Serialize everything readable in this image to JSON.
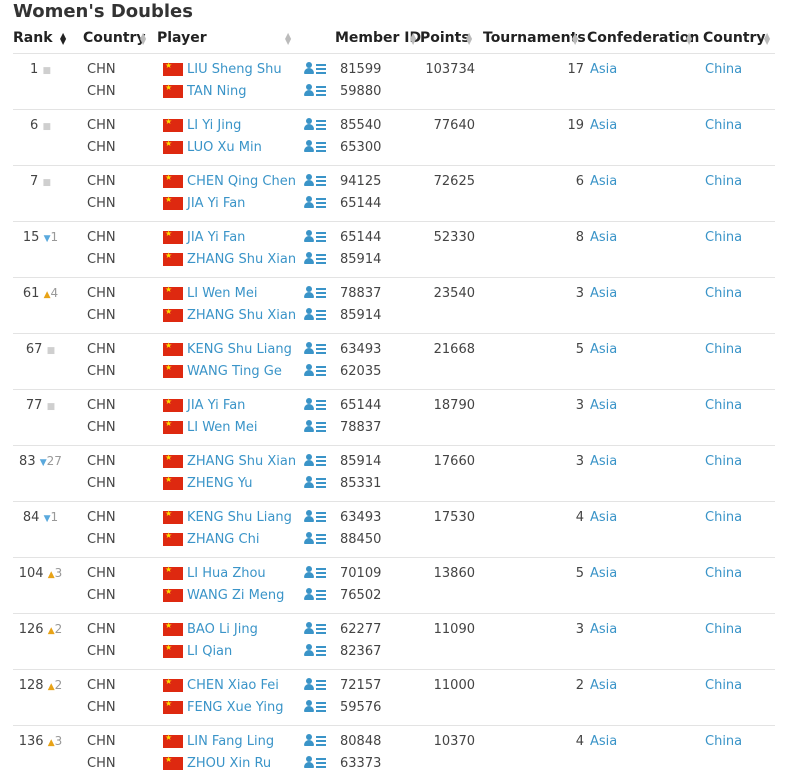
{
  "title": "Women's Doubles",
  "columns": {
    "rank": "Rank",
    "country": "Country",
    "player": "Player",
    "member_id": "Member ID",
    "points": "Points",
    "tournaments": "Tournaments",
    "confederation": "Confederation",
    "country2": "Country"
  },
  "colors": {
    "link": "#3a94c8",
    "up": "#e8a317",
    "down": "#5aa9dd",
    "flag": "#de2910"
  },
  "icons": {
    "trend_up": "▲",
    "trend_down": "▼",
    "trend_same": "■",
    "sort": "sort-arrows-icon",
    "profile": "profile-icon",
    "flag": "china-flag-icon"
  },
  "rows": [
    {
      "rank": "1",
      "trend": "same",
      "change": "",
      "points": "103734",
      "tournaments": "17",
      "confederation": "Asia",
      "country": "China",
      "players": [
        {
          "country": "CHN",
          "name": "LIU Sheng Shu",
          "id": "81599"
        },
        {
          "country": "CHN",
          "name": "TAN Ning",
          "id": "59880"
        }
      ]
    },
    {
      "rank": "6",
      "trend": "same",
      "change": "",
      "points": "77640",
      "tournaments": "19",
      "confederation": "Asia",
      "country": "China",
      "players": [
        {
          "country": "CHN",
          "name": "LI Yi Jing",
          "id": "85540"
        },
        {
          "country": "CHN",
          "name": "LUO Xu Min",
          "id": "65300"
        }
      ]
    },
    {
      "rank": "7",
      "trend": "same",
      "change": "",
      "points": "72625",
      "tournaments": "6",
      "confederation": "Asia",
      "country": "China",
      "players": [
        {
          "country": "CHN",
          "name": "CHEN Qing Chen",
          "id": "94125"
        },
        {
          "country": "CHN",
          "name": "JIA Yi Fan",
          "id": "65144"
        }
      ]
    },
    {
      "rank": "15",
      "trend": "down",
      "change": "1",
      "points": "52330",
      "tournaments": "8",
      "confederation": "Asia",
      "country": "China",
      "players": [
        {
          "country": "CHN",
          "name": "JIA Yi Fan",
          "id": "65144"
        },
        {
          "country": "CHN",
          "name": "ZHANG Shu Xian",
          "id": "85914"
        }
      ]
    },
    {
      "rank": "61",
      "trend": "up",
      "change": "4",
      "points": "23540",
      "tournaments": "3",
      "confederation": "Asia",
      "country": "China",
      "players": [
        {
          "country": "CHN",
          "name": "LI Wen Mei",
          "id": "78837"
        },
        {
          "country": "CHN",
          "name": "ZHANG Shu Xian",
          "id": "85914"
        }
      ]
    },
    {
      "rank": "67",
      "trend": "same",
      "change": "",
      "points": "21668",
      "tournaments": "5",
      "confederation": "Asia",
      "country": "China",
      "players": [
        {
          "country": "CHN",
          "name": "KENG Shu Liang",
          "id": "63493"
        },
        {
          "country": "CHN",
          "name": "WANG Ting Ge",
          "id": "62035"
        }
      ]
    },
    {
      "rank": "77",
      "trend": "same",
      "change": "",
      "points": "18790",
      "tournaments": "3",
      "confederation": "Asia",
      "country": "China",
      "players": [
        {
          "country": "CHN",
          "name": "JIA Yi Fan",
          "id": "65144"
        },
        {
          "country": "CHN",
          "name": "LI Wen Mei",
          "id": "78837"
        }
      ]
    },
    {
      "rank": "83",
      "trend": "down",
      "change": "27",
      "points": "17660",
      "tournaments": "3",
      "confederation": "Asia",
      "country": "China",
      "players": [
        {
          "country": "CHN",
          "name": "ZHANG Shu Xian",
          "id": "85914"
        },
        {
          "country": "CHN",
          "name": "ZHENG Yu",
          "id": "85331"
        }
      ]
    },
    {
      "rank": "84",
      "trend": "down",
      "change": "1",
      "points": "17530",
      "tournaments": "4",
      "confederation": "Asia",
      "country": "China",
      "players": [
        {
          "country": "CHN",
          "name": "KENG Shu Liang",
          "id": "63493"
        },
        {
          "country": "CHN",
          "name": "ZHANG Chi",
          "id": "88450"
        }
      ]
    },
    {
      "rank": "104",
      "trend": "up",
      "change": "3",
      "points": "13860",
      "tournaments": "5",
      "confederation": "Asia",
      "country": "China",
      "players": [
        {
          "country": "CHN",
          "name": "LI Hua Zhou",
          "id": "70109"
        },
        {
          "country": "CHN",
          "name": "WANG Zi Meng",
          "id": "76502"
        }
      ]
    },
    {
      "rank": "126",
      "trend": "up",
      "change": "2",
      "points": "11090",
      "tournaments": "3",
      "confederation": "Asia",
      "country": "China",
      "players": [
        {
          "country": "CHN",
          "name": "BAO Li Jing",
          "id": "62277"
        },
        {
          "country": "CHN",
          "name": "LI Qian",
          "id": "82367"
        }
      ]
    },
    {
      "rank": "128",
      "trend": "up",
      "change": "2",
      "points": "11000",
      "tournaments": "2",
      "confederation": "Asia",
      "country": "China",
      "players": [
        {
          "country": "CHN",
          "name": "CHEN Xiao Fei",
          "id": "72157"
        },
        {
          "country": "CHN",
          "name": "FENG Xue Ying",
          "id": "59576"
        }
      ]
    },
    {
      "rank": "136",
      "trend": "up",
      "change": "3",
      "points": "10370",
      "tournaments": "4",
      "confederation": "Asia",
      "country": "China",
      "players": [
        {
          "country": "CHN",
          "name": "LIN Fang Ling",
          "id": "80848"
        },
        {
          "country": "CHN",
          "name": "ZHOU Xin Ru",
          "id": "63373"
        }
      ]
    }
  ]
}
